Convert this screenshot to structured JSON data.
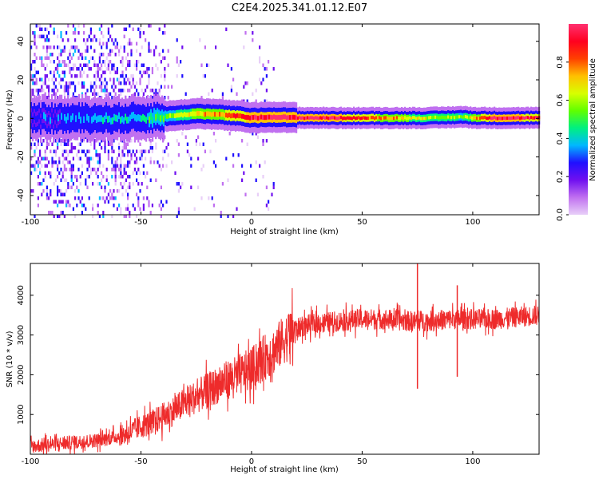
{
  "title": "C2E4.2025.341.01.12.E07",
  "colors": {
    "snr_line": "#ee2b2b",
    "frame": "#000000"
  },
  "chart_data": [
    {
      "type": "heatmap",
      "title": "C2E4.2025.341.01.12.E07",
      "xlabel": "Height of straight line (km)",
      "ylabel": "Frequency (Hz)",
      "xlim": [
        -100,
        130
      ],
      "ylim": [
        -50,
        49
      ],
      "xticks": [
        -100,
        -50,
        0,
        50,
        100
      ],
      "xtick_labels": [
        "-100",
        "-50",
        "0",
        "50",
        "100"
      ],
      "yticks": [
        -40,
        -20,
        0,
        20,
        40
      ],
      "ytick_labels": [
        "-40",
        "-20",
        "0",
        "20",
        "40"
      ],
      "colorbar": {
        "label": "Normalized spectral amplitude",
        "range": [
          0,
          1
        ],
        "ticks": [
          0,
          0.2,
          0.4,
          0.6,
          0.8
        ],
        "tick_labels": [
          "0.0",
          "0.2",
          "0.4",
          "0.6",
          "0.8"
        ],
        "colors": [
          "#e8cff8",
          "#c070f0",
          "#7010f0",
          "#2010ff",
          "#00b8ff",
          "#00f080",
          "#60ff00",
          "#d8ff00",
          "#ffc000",
          "#ff4000",
          "#ff0020",
          "#ff3070"
        ]
      },
      "ridge": {
        "x": [
          -100,
          -80,
          -60,
          -45,
          -35,
          -25,
          -15,
          -5,
          0,
          5,
          10,
          15,
          20,
          40,
          60,
          80,
          95,
          100,
          110,
          130
        ],
        "freq": [
          0,
          0,
          0,
          0.5,
          1.5,
          2.5,
          2.0,
          1.0,
          0.3,
          0.5,
          0.8,
          0.5,
          0.3,
          0.2,
          0.2,
          0.2,
          0.8,
          0.3,
          0.2,
          0.3
        ],
        "amplitude": [
          0.3,
          0.35,
          0.4,
          0.45,
          0.55,
          0.7,
          0.75,
          0.85,
          0.95,
          0.9,
          1.0,
          0.95,
          0.95,
          0.9,
          0.75,
          0.6,
          0.55,
          0.7,
          0.95,
          0.85
        ]
      }
    },
    {
      "type": "line",
      "xlabel": "Height of straight line (km)",
      "ylabel": "SNR (10 * v/v)",
      "xlim": [
        -100,
        130
      ],
      "ylim": [
        0,
        4800
      ],
      "xticks": [
        -100,
        -50,
        0,
        50,
        100
      ],
      "xtick_labels": [
        "-100",
        "-50",
        "0",
        "50",
        "100"
      ],
      "yticks": [
        1000,
        2000,
        3000,
        4000
      ],
      "ytick_labels": [
        "1000",
        "2000",
        "3000",
        "4000"
      ],
      "series": [
        {
          "name": "SNR",
          "x": [
            -100,
            -90,
            -80,
            -70,
            -60,
            -55,
            -50,
            -45,
            -40,
            -35,
            -30,
            -25,
            -20,
            -15,
            -10,
            -5,
            0,
            5,
            10,
            15,
            20,
            25,
            30,
            40,
            50,
            60,
            70,
            80,
            90,
            100,
            110,
            120,
            130
          ],
          "values": [
            200,
            250,
            300,
            350,
            450,
            550,
            700,
            800,
            950,
            1100,
            1300,
            1450,
            1600,
            1750,
            1900,
            2000,
            2150,
            2400,
            2600,
            2900,
            3150,
            3250,
            3300,
            3350,
            3400,
            3400,
            3350,
            3350,
            3400,
            3400,
            3400,
            3450,
            3500
          ]
        }
      ],
      "spikes": [
        {
          "x": 75,
          "low": 1650,
          "high": 4800
        },
        {
          "x": 93,
          "low": 1950,
          "high": 4250
        },
        {
          "x": 95,
          "low": 3300,
          "high": 3800
        }
      ]
    }
  ]
}
